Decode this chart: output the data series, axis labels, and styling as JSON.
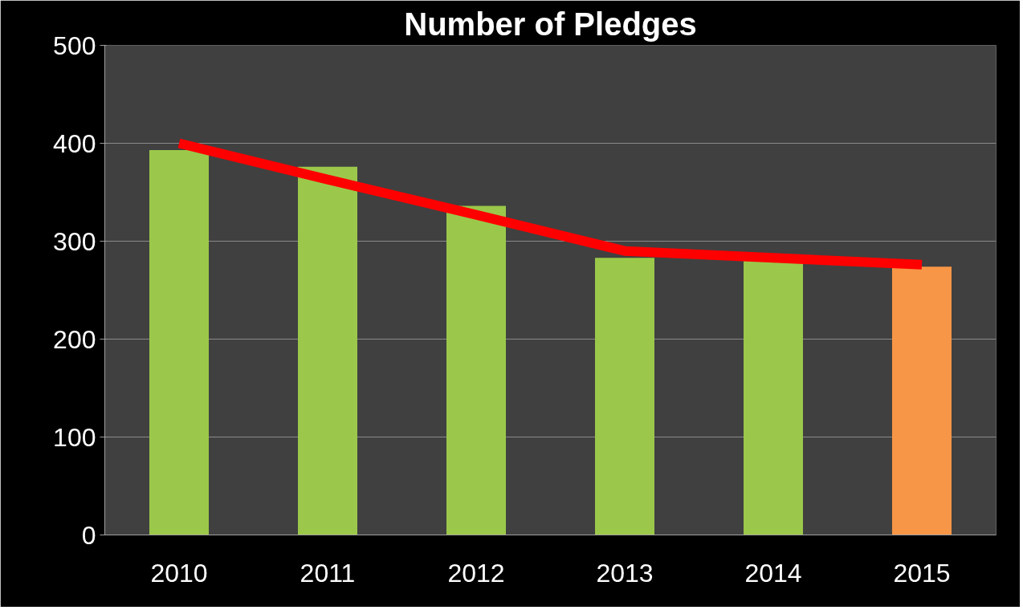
{
  "chart_data": {
    "type": "bar",
    "title": "Number of Pledges",
    "categories": [
      "2010",
      "2011",
      "2012",
      "2013",
      "2014",
      "2015"
    ],
    "series": [
      {
        "colors": [
          "#9bc84a",
          "#9bc84a",
          "#9bc84a",
          "#9bc84a",
          "#9bc84a",
          "#f79646"
        ],
        "values": [
          393,
          376,
          336,
          283,
          280,
          274
        ]
      },
      {
        "type": "line",
        "color": "#ff0000",
        "values": [
          400,
          363,
          327,
          290,
          283,
          276
        ]
      }
    ],
    "ylim": [
      0,
      500
    ],
    "yticks": [
      0,
      100,
      200,
      300,
      400,
      500
    ],
    "grid": "y"
  }
}
